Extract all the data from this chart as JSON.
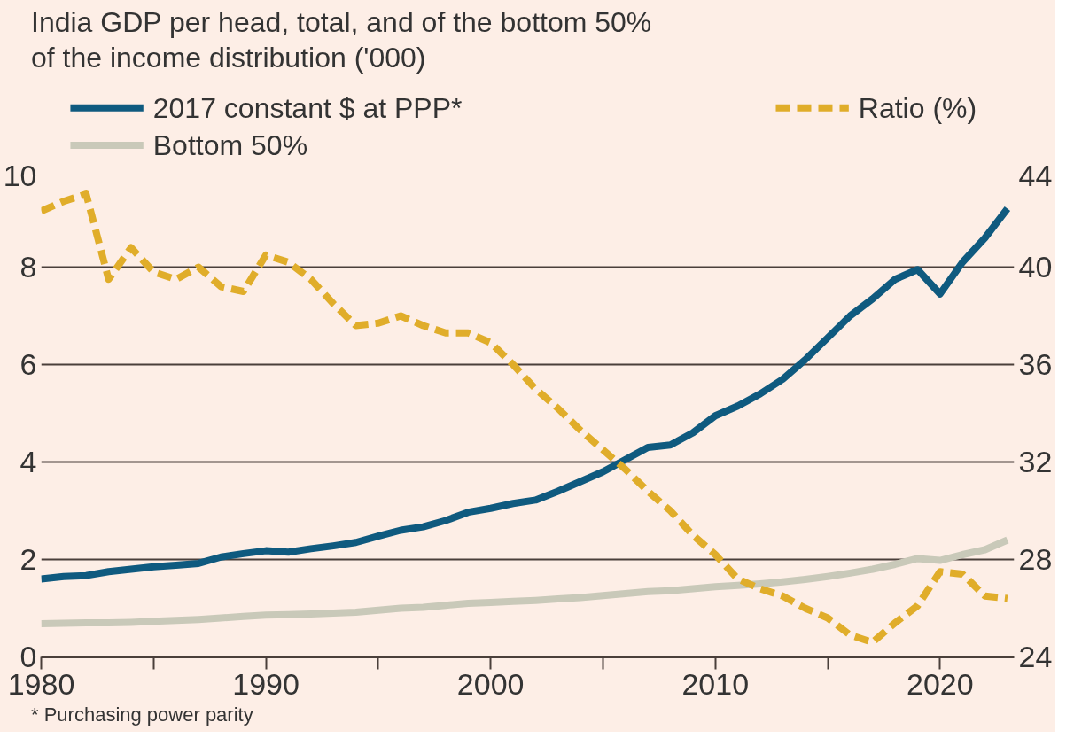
{
  "chart_data": {
    "type": "line",
    "subtitle": "India GDP per head, total, and of the bottom 50%\nof the income distribution ('000)",
    "x": [
      1980,
      1981,
      1982,
      1983,
      1984,
      1985,
      1986,
      1987,
      1988,
      1989,
      1990,
      1991,
      1992,
      1993,
      1994,
      1995,
      1996,
      1997,
      1998,
      1999,
      2000,
      2001,
      2002,
      2003,
      2004,
      2005,
      2006,
      2007,
      2008,
      2009,
      2010,
      2011,
      2012,
      2013,
      2014,
      2015,
      2016,
      2017,
      2018,
      2019,
      2020,
      2021,
      2022,
      2023
    ],
    "series": [
      {
        "name": "2017 constant $ at PPP*",
        "color": "#0f5a7f",
        "line_style": "solid",
        "values": [
          1.6,
          1.65,
          1.67,
          1.75,
          1.8,
          1.85,
          1.88,
          1.92,
          2.05,
          2.12,
          2.18,
          2.15,
          2.22,
          2.28,
          2.35,
          2.48,
          2.6,
          2.67,
          2.8,
          2.97,
          3.05,
          3.15,
          3.22,
          3.4,
          3.6,
          3.8,
          4.05,
          4.3,
          4.35,
          4.6,
          4.95,
          5.15,
          5.4,
          5.7,
          6.1,
          6.55,
          7.0,
          7.35,
          7.75,
          7.95,
          7.45,
          8.1,
          8.6,
          9.2
        ]
      },
      {
        "name": "Bottom 50%",
        "color": "#c9c9b9",
        "line_style": "solid",
        "values": [
          0.68,
          0.69,
          0.7,
          0.7,
          0.71,
          0.73,
          0.75,
          0.77,
          0.8,
          0.83,
          0.86,
          0.87,
          0.88,
          0.9,
          0.92,
          0.96,
          1.0,
          1.02,
          1.06,
          1.1,
          1.12,
          1.14,
          1.16,
          1.19,
          1.22,
          1.26,
          1.3,
          1.34,
          1.36,
          1.4,
          1.44,
          1.47,
          1.5,
          1.54,
          1.59,
          1.65,
          1.72,
          1.8,
          1.9,
          2.02,
          1.98,
          2.1,
          2.2,
          2.4
        ]
      },
      {
        "name": "Ratio (%)",
        "color": "#e0ad2a",
        "line_style": "dashed",
        "axis": "y2",
        "values": [
          42.3,
          42.7,
          43.0,
          39.5,
          40.8,
          39.8,
          39.5,
          40.0,
          39.2,
          39.0,
          40.5,
          40.2,
          39.5,
          38.5,
          37.6,
          37.7,
          38.0,
          37.6,
          37.3,
          37.3,
          36.9,
          36.0,
          35.0,
          34.2,
          33.3,
          32.5,
          31.7,
          30.8,
          30.0,
          29.0,
          28.2,
          27.2,
          26.8,
          26.5,
          26.0,
          25.6,
          24.9,
          24.6,
          25.4,
          26.1,
          27.5,
          27.4,
          26.5,
          26.4
        ]
      }
    ],
    "xlim": [
      1980,
      2023.3
    ],
    "xticks": [
      1980,
      {
        "value": 1985,
        "label": null
      },
      1990,
      {
        "value": 1995,
        "label": null
      },
      2000,
      {
        "value": 2005,
        "label": null
      },
      2010,
      {
        "value": 2015,
        "label": null
      },
      2020
    ],
    "ylim": [
      0,
      10
    ],
    "yticks": [
      0,
      2,
      4,
      6,
      8,
      10
    ],
    "y2lim": [
      24,
      44
    ],
    "y2ticks": [
      24,
      28,
      32,
      36,
      40,
      44
    ],
    "grid": "y",
    "legend": "top",
    "annotations": [
      "* Purchasing power parity"
    ]
  }
}
